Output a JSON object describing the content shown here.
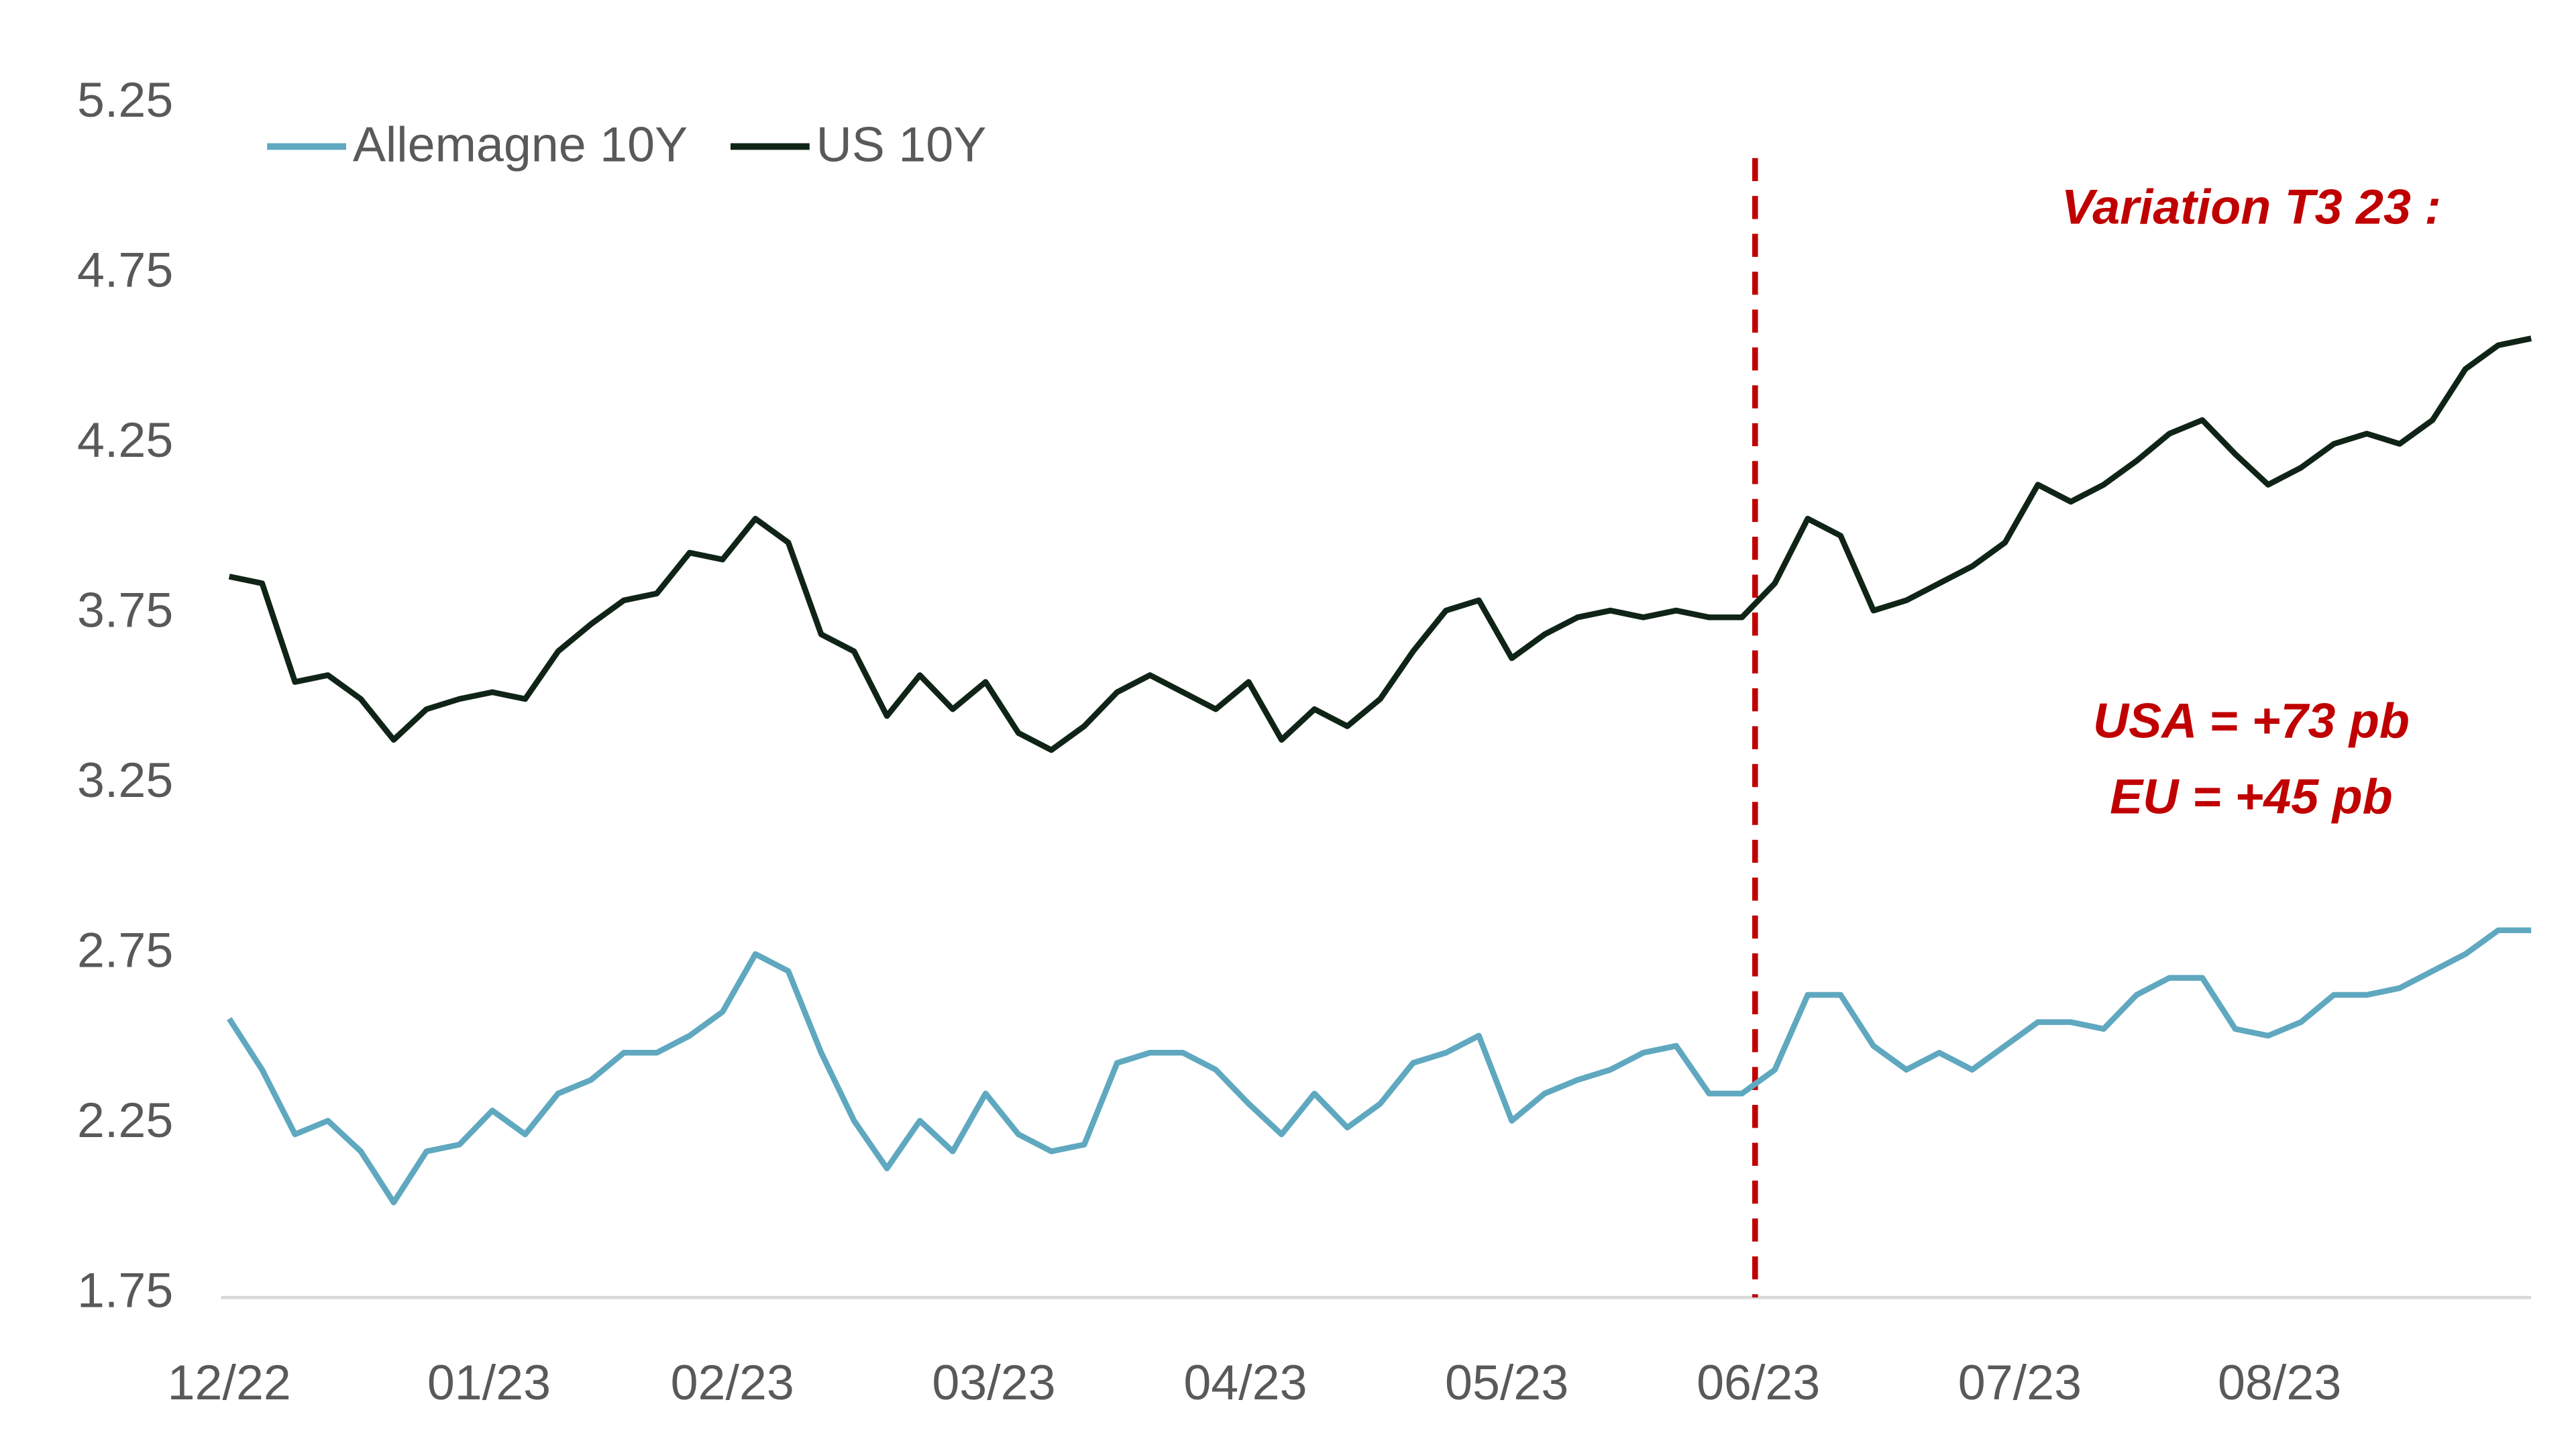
{
  "chart_data": {
    "type": "line",
    "xlim": [
      0,
      70
    ],
    "xticks": [
      {
        "value": 0,
        "label": "12/22"
      },
      {
        "value": 7.9,
        "label": "01/23"
      },
      {
        "value": 15.3,
        "label": "02/23"
      },
      {
        "value": 23.25,
        "label": "03/23"
      },
      {
        "value": 30.9,
        "label": "04/23"
      },
      {
        "value": 38.85,
        "label": "05/23"
      },
      {
        "value": 46.5,
        "label": "06/23"
      },
      {
        "value": 54.45,
        "label": "07/23"
      },
      {
        "value": 62.35,
        "label": "08/23"
      }
    ],
    "ylim": [
      1.75,
      5.25
    ],
    "yticks": [
      1.75,
      2.25,
      2.75,
      3.25,
      3.75,
      4.25,
      4.75,
      5.25
    ],
    "grid": false,
    "legend": "top-left",
    "vline": {
      "x": 46.4,
      "color": "#c00000"
    },
    "annotations": [
      "Variation T3 23 :",
      "USA = +73 pb",
      "EU = +45 pb"
    ],
    "series": [
      {
        "name": "Allemagne 10Y",
        "color": "#5fa8c0",
        "values": [
          2.56,
          2.41,
          2.22,
          2.26,
          2.17,
          2.02,
          2.17,
          2.19,
          2.29,
          2.22,
          2.34,
          2.38,
          2.46,
          2.46,
          2.51,
          2.58,
          2.75,
          2.7,
          2.46,
          2.26,
          2.12,
          2.26,
          2.17,
          2.34,
          2.22,
          2.17,
          2.19,
          2.43,
          2.46,
          2.46,
          2.41,
          2.31,
          2.22,
          2.34,
          2.24,
          2.31,
          2.43,
          2.46,
          2.51,
          2.26,
          2.34,
          2.38,
          2.41,
          2.46,
          2.48,
          2.34,
          2.34,
          2.41,
          2.63,
          2.63,
          2.48,
          2.41,
          2.46,
          2.41,
          2.48,
          2.55,
          2.55,
          2.53,
          2.63,
          2.68,
          2.68,
          2.53,
          2.51,
          2.55,
          2.63,
          2.63,
          2.65,
          2.7,
          2.75,
          2.82,
          2.82
        ]
      },
      {
        "name": "US 10Y",
        "color": "#0f2416",
        "values": [
          3.86,
          3.84,
          3.55,
          3.57,
          3.5,
          3.38,
          3.47,
          3.5,
          3.52,
          3.5,
          3.64,
          3.72,
          3.79,
          3.81,
          3.93,
          3.91,
          4.03,
          3.96,
          3.69,
          3.64,
          3.45,
          3.57,
          3.47,
          3.55,
          3.4,
          3.35,
          3.42,
          3.52,
          3.57,
          3.52,
          3.47,
          3.55,
          3.38,
          3.47,
          3.42,
          3.5,
          3.64,
          3.76,
          3.79,
          3.62,
          3.69,
          3.74,
          3.76,
          3.74,
          3.76,
          3.74,
          3.74,
          3.84,
          4.03,
          3.98,
          3.76,
          3.79,
          3.84,
          3.89,
          3.96,
          4.13,
          4.08,
          4.13,
          4.2,
          4.28,
          4.32,
          4.22,
          4.13,
          4.18,
          4.25,
          4.28,
          4.25,
          4.32,
          4.47,
          4.54,
          4.56
        ]
      }
    ]
  }
}
